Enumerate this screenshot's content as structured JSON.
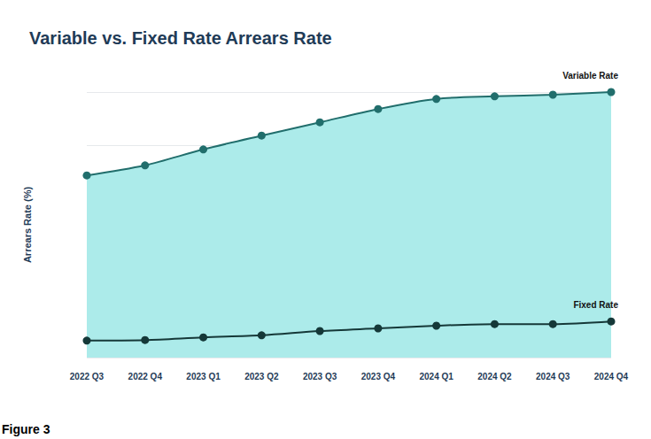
{
  "chart_data": {
    "type": "line",
    "title": "Variable vs. Fixed Rate Arrears Rate",
    "y_label": "Arrears Rate (%)",
    "caption": "Figure 3",
    "categories": [
      "2022 Q3",
      "2022 Q4",
      "2023 Q1",
      "2023 Q2",
      "2023 Q3",
      "2023 Q4",
      "2024 Q1",
      "2024 Q2",
      "2024 Q3",
      "2024 Q4"
    ],
    "series": [
      {
        "name": "Variable Rate",
        "type": "area",
        "color": "#216e6c",
        "marker": "circle",
        "values": [
          3.43,
          3.62,
          3.92,
          4.18,
          4.43,
          4.68,
          4.87,
          4.92,
          4.95,
          5.0
        ]
      },
      {
        "name": "Fixed Rate",
        "type": "line",
        "color": "#153838",
        "marker": "circle",
        "values": [
          0.32,
          0.33,
          0.38,
          0.42,
          0.5,
          0.55,
          0.6,
          0.63,
          0.63,
          0.68
        ]
      }
    ],
    "ylim": [
      0,
      5
    ],
    "yticks": [
      0,
      1,
      2,
      3,
      4,
      5
    ],
    "grid": true,
    "tick_labels": "x"
  }
}
